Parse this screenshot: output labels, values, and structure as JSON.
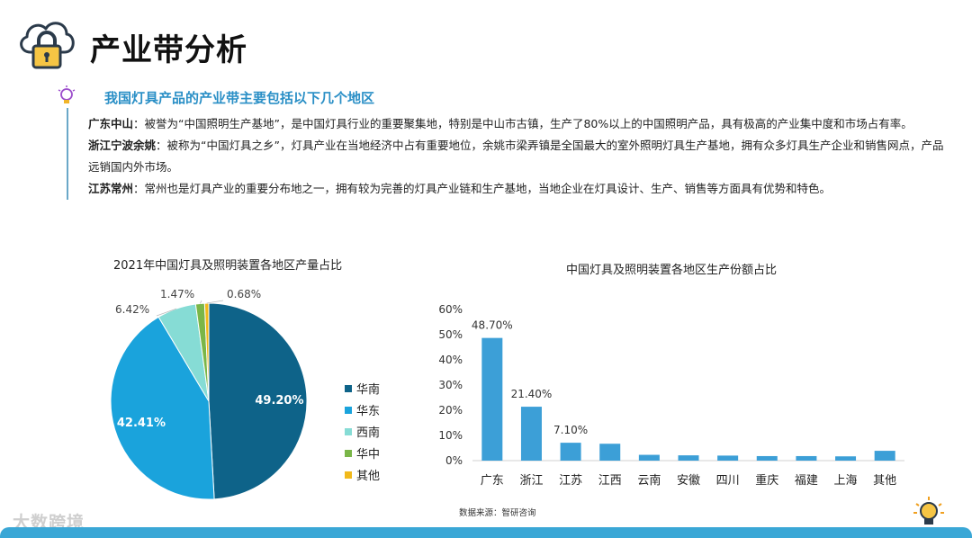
{
  "page": {
    "title": "产业带分析",
    "subtitle": "我国灯具产品的产业带主要包括以下几个地区",
    "source": "数据来源：智研咨询",
    "watermark": "大数跨境"
  },
  "regions": [
    {
      "name": "广东中山",
      "text": "：被誉为“中国照明生产基地”，是中国灯具行业的重要聚集地，特别是中山市古镇，生产了80%以上的中国照明产品，具有极高的产业集中度和市场占有率。"
    },
    {
      "name": "浙江宁波余姚",
      "text": "：被称为“中国灯具之乡”，灯具产业在当地经济中占有重要地位，余姚市梁弄镇是全国最大的室外照明灯具生产基地，拥有众多灯具生产企业和销售网点，产品远销国内外市场。"
    },
    {
      "name": "江苏常州",
      "text": "：常州也是灯具产业的重要分布地之一，拥有较为完善的灯具产业链和生产基地，当地企业在灯具设计、生产、销售等方面具有优势和特色。"
    }
  ],
  "chart_data": [
    {
      "type": "pie",
      "title": "2021年中国灯具及照明装置各地区产量占比",
      "categories": [
        "华南",
        "华东",
        "西南",
        "华中",
        "其他"
      ],
      "values": [
        49.2,
        42.41,
        6.42,
        1.47,
        0.68
      ],
      "labels": [
        "49.20%",
        "42.41%",
        "6.42%",
        "1.47%",
        "0.68%"
      ],
      "colors": [
        "#0e6389",
        "#1aa3dc",
        "#86dcd5",
        "#7ab648",
        "#f1b91b"
      ],
      "legend": "right"
    },
    {
      "type": "bar",
      "title": "中国灯具及照明装置各地区生产份额占比",
      "categories": [
        "广东",
        "浙江",
        "江苏",
        "江西",
        "云南",
        "安徽",
        "四川",
        "重庆",
        "福建",
        "上海",
        "其他"
      ],
      "values": [
        48.7,
        21.4,
        7.1,
        6.7,
        2.3,
        2.1,
        2.0,
        1.8,
        1.8,
        1.7,
        3.9
      ],
      "data_labels": [
        "48.70%",
        "21.40%",
        "7.10%",
        "",
        "",
        "",
        "",
        "",
        "",
        "",
        ""
      ],
      "yticks": [
        "0%",
        "10%",
        "20%",
        "30%",
        "40%",
        "50%",
        "60%"
      ],
      "ylim": [
        0,
        60
      ],
      "color": "#3c9fd7",
      "grid": false
    }
  ]
}
